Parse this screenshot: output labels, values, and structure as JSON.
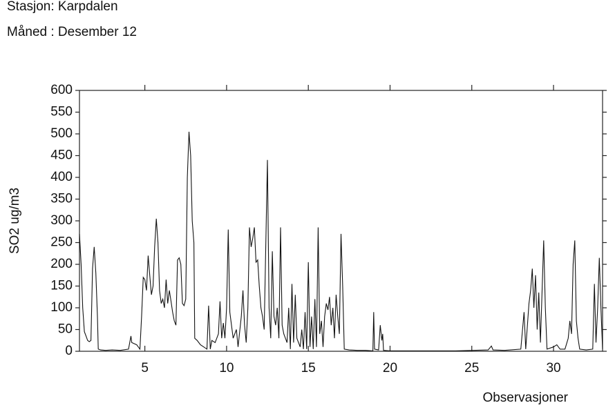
{
  "chart_data": {
    "type": "line",
    "title": "Stasjon: Karpdalen",
    "subtitle": "Måned  : Desember 12",
    "ylabel": "SO2 ug/m3",
    "xlabel": "Observasjoner",
    "color": "#111111",
    "xlim": [
      1,
      33
    ],
    "xticks": [
      5,
      10,
      15,
      20,
      25,
      30
    ],
    "ylim": [
      0,
      600
    ],
    "yticks": [
      0,
      50,
      100,
      150,
      200,
      250,
      300,
      350,
      400,
      450,
      500,
      550,
      600
    ],
    "x": [
      1.0,
      1.1,
      1.2,
      1.3,
      1.4,
      1.5,
      1.6,
      1.7,
      1.8,
      1.9,
      2.0,
      2.1,
      2.15,
      2.3,
      2.6,
      3.0,
      3.5,
      4.0,
      4.15,
      4.2,
      4.5,
      4.7,
      4.8,
      4.9,
      5.0,
      5.1,
      5.2,
      5.3,
      5.4,
      5.5,
      5.6,
      5.7,
      5.8,
      5.9,
      6.0,
      6.1,
      6.2,
      6.3,
      6.4,
      6.5,
      6.6,
      6.7,
      6.8,
      6.9,
      7.0,
      7.1,
      7.2,
      7.3,
      7.4,
      7.5,
      7.6,
      7.7,
      7.8,
      7.9,
      8.0,
      8.05,
      8.2,
      8.4,
      8.6,
      8.8,
      8.9,
      9.0,
      9.1,
      9.3,
      9.5,
      9.6,
      9.7,
      9.8,
      9.9,
      10.0,
      10.1,
      10.2,
      10.3,
      10.4,
      10.6,
      10.7,
      10.9,
      11.0,
      11.1,
      11.2,
      11.3,
      11.4,
      11.5,
      11.6,
      11.7,
      11.8,
      11.9,
      12.0,
      12.1,
      12.2,
      12.3,
      12.5,
      12.6,
      12.7,
      12.8,
      12.9,
      13.0,
      13.1,
      13.2,
      13.3,
      13.4,
      13.5,
      13.7,
      13.8,
      13.9,
      14.0,
      14.1,
      14.2,
      14.3,
      14.5,
      14.6,
      14.7,
      14.8,
      14.9,
      15.0,
      15.1,
      15.2,
      15.3,
      15.4,
      15.5,
      15.6,
      15.7,
      15.8,
      15.9,
      16.0,
      16.1,
      16.2,
      16.3,
      16.4,
      16.5,
      16.6,
      16.7,
      16.8,
      16.9,
      17.0,
      17.1,
      17.2,
      17.5,
      18.0,
      18.5,
      18.95,
      19.0,
      19.05,
      19.3,
      19.4,
      19.5,
      19.55,
      19.6,
      20.0,
      22.0,
      24.0,
      26.0,
      26.2,
      26.3,
      27.0,
      28.0,
      28.2,
      28.3,
      28.5,
      28.6,
      28.7,
      28.8,
      28.9,
      29.0,
      29.1,
      29.2,
      29.4,
      29.5,
      29.6,
      30.0,
      30.2,
      30.4,
      30.7,
      30.9,
      31.0,
      31.1,
      31.2,
      31.3,
      31.4,
      31.5,
      31.6,
      32.0,
      32.4,
      32.5,
      32.6,
      32.7,
      32.8,
      32.9,
      33.0
    ],
    "values": [
      270,
      200,
      100,
      45,
      35,
      25,
      22,
      25,
      190,
      240,
      180,
      80,
      5,
      3,
      2,
      3,
      2,
      5,
      35,
      20,
      15,
      5,
      80,
      170,
      165,
      140,
      220,
      175,
      130,
      150,
      240,
      305,
      250,
      140,
      110,
      120,
      100,
      165,
      110,
      140,
      115,
      90,
      70,
      60,
      210,
      215,
      200,
      110,
      105,
      120,
      400,
      505,
      450,
      300,
      250,
      30,
      25,
      15,
      10,
      5,
      105,
      5,
      25,
      20,
      40,
      115,
      30,
      65,
      30,
      100,
      280,
      90,
      60,
      30,
      50,
      10,
      80,
      140,
      60,
      20,
      100,
      285,
      240,
      260,
      285,
      205,
      210,
      150,
      100,
      80,
      50,
      440,
      100,
      30,
      230,
      80,
      60,
      100,
      30,
      285,
      60,
      40,
      20,
      100,
      5,
      155,
      20,
      130,
      30,
      10,
      50,
      5,
      90,
      5,
      205,
      10,
      80,
      5,
      120,
      10,
      285,
      40,
      70,
      10,
      80,
      110,
      95,
      125,
      60,
      100,
      30,
      130,
      80,
      40,
      270,
      150,
      5,
      3,
      2,
      2,
      1,
      90,
      5,
      3,
      60,
      25,
      40,
      2,
      1,
      1,
      1,
      3,
      12,
      3,
      2,
      5,
      90,
      5,
      110,
      140,
      190,
      100,
      175,
      50,
      135,
      20,
      255,
      100,
      5,
      10,
      15,
      5,
      5,
      30,
      70,
      40,
      200,
      255,
      70,
      30,
      5,
      3,
      5,
      155,
      20,
      100,
      215,
      100,
      5
    ]
  }
}
